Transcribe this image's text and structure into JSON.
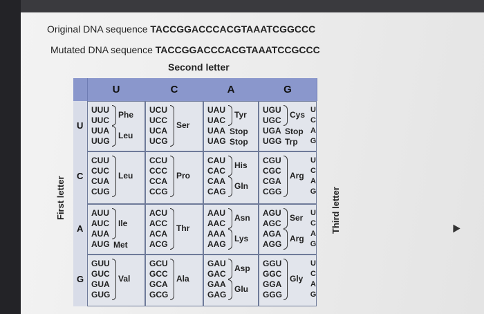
{
  "original": {
    "label": "Original DNA sequence",
    "sequence": "TACCGGACCCACGTAAATCGGCCC"
  },
  "mutated": {
    "label": "Mutated DNA sequence",
    "sequence": "TACCGGACCCACGTAAATCCGCCC"
  },
  "table": {
    "second_letter_title": "Second letter",
    "first_letter_title": "First letter",
    "third_letter_title": "Third letter",
    "columns": [
      "U",
      "C",
      "A",
      "G"
    ],
    "rows": [
      "U",
      "C",
      "A",
      "G"
    ],
    "third_letters": [
      "U",
      "C",
      "A",
      "G"
    ],
    "cells": {
      "UU": {
        "codons": [
          "UUU",
          "UUC",
          "UUA",
          "UUG"
        ],
        "aa": [
          "Phe",
          "Leu"
        ]
      },
      "UC": {
        "codons": [
          "UCU",
          "UCC",
          "UCA",
          "UCG"
        ],
        "aa": [
          "Ser"
        ]
      },
      "UA": {
        "codons": [
          "UAU",
          "UAC",
          "UAA",
          "UAG"
        ],
        "aa": [
          "Tyr",
          "Stop",
          "Stop"
        ]
      },
      "UG": {
        "codons": [
          "UGU",
          "UGC",
          "UGA",
          "UGG"
        ],
        "aa": [
          "Cys",
          "Stop",
          "Trp"
        ]
      },
      "CU": {
        "codons": [
          "CUU",
          "CUC",
          "CUA",
          "CUG"
        ],
        "aa": [
          "Leu"
        ]
      },
      "CC": {
        "codons": [
          "CCU",
          "CCC",
          "CCA",
          "CCG"
        ],
        "aa": [
          "Pro"
        ]
      },
      "CA": {
        "codons": [
          "CAU",
          "CAC",
          "CAA",
          "CAG"
        ],
        "aa": [
          "His",
          "Gln"
        ]
      },
      "CG": {
        "codons": [
          "CGU",
          "CGC",
          "CGA",
          "CGG"
        ],
        "aa": [
          "Arg"
        ]
      },
      "AU": {
        "codons": [
          "AUU",
          "AUC",
          "AUA",
          "AUG"
        ],
        "aa": [
          "Ile",
          "Met"
        ]
      },
      "AC": {
        "codons": [
          "ACU",
          "ACC",
          "ACA",
          "ACG"
        ],
        "aa": [
          "Thr"
        ]
      },
      "AA": {
        "codons": [
          "AAU",
          "AAC",
          "AAA",
          "AAG"
        ],
        "aa": [
          "Asn",
          "Lys"
        ]
      },
      "AG": {
        "codons": [
          "AGU",
          "AGC",
          "AGA",
          "AGG"
        ],
        "aa": [
          "Ser",
          "Arg"
        ]
      },
      "GU": {
        "codons": [
          "GUU",
          "GUC",
          "GUA",
          "GUG"
        ],
        "aa": [
          "Val"
        ]
      },
      "GC": {
        "codons": [
          "GCU",
          "GCC",
          "GCA",
          "GCG"
        ],
        "aa": [
          "Ala"
        ]
      },
      "GA": {
        "codons": [
          "GAU",
          "GAC",
          "GAA",
          "GAG"
        ],
        "aa": [
          "Asp",
          "Glu"
        ]
      },
      "GG": {
        "codons": [
          "GGU",
          "GGC",
          "GGA",
          "GGG"
        ],
        "aa": [
          "Gly"
        ]
      }
    }
  }
}
